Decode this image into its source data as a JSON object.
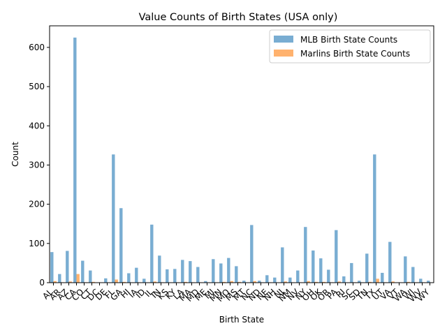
{
  "chart_data": {
    "type": "bar",
    "title": "Value Counts of Birth States (USA only)",
    "xlabel": "Birth State",
    "ylabel": "Count",
    "ylim": [
      0,
      655
    ],
    "yticks": [
      0,
      100,
      200,
      300,
      400,
      500,
      600
    ],
    "grid": false,
    "legend_position": "top-right",
    "categories": [
      "AL",
      "AR",
      "AZ",
      "CA",
      "CO",
      "CT",
      "DC",
      "DE",
      "FL",
      "GA",
      "HI",
      "IA",
      "ID",
      "IL",
      "IN",
      "KS",
      "KY",
      "LA",
      "MA",
      "MD",
      "ME",
      "MI",
      "MN",
      "MO",
      "MS",
      "MT",
      "NC",
      "ND",
      "NE",
      "NH",
      "NJ",
      "NM",
      "NV",
      "NY",
      "OH",
      "OK",
      "OR",
      "PA",
      "RI",
      "SC",
      "SD",
      "TN",
      "TX",
      "UT",
      "VA",
      "VT",
      "WA",
      "WI",
      "WV",
      "WY"
    ],
    "series": [
      {
        "name": "MLB Birth State Counts",
        "color": "#1f77b4",
        "values": [
          78,
          22,
          81,
          625,
          56,
          31,
          0,
          11,
          327,
          190,
          24,
          38,
          10,
          148,
          69,
          34,
          35,
          58,
          55,
          40,
          4,
          60,
          49,
          63,
          42,
          5,
          147,
          5,
          19,
          13,
          90,
          13,
          31,
          142,
          82,
          62,
          33,
          134,
          16,
          50,
          5,
          74,
          327,
          25,
          104,
          0,
          67,
          40,
          10,
          5
        ]
      },
      {
        "name": "Marlins Birth State Counts",
        "color": "#ff7f0e",
        "values": [
          4,
          1,
          3,
          22,
          1,
          2,
          0,
          0,
          8,
          2,
          0,
          1,
          0,
          3,
          1,
          0,
          1,
          2,
          1,
          1,
          0,
          1,
          2,
          4,
          2,
          0,
          4,
          0,
          1,
          0,
          3,
          1,
          1,
          4,
          2,
          2,
          1,
          3,
          0,
          1,
          0,
          2,
          10,
          1,
          3,
          0,
          2,
          1,
          1,
          0
        ]
      }
    ]
  }
}
